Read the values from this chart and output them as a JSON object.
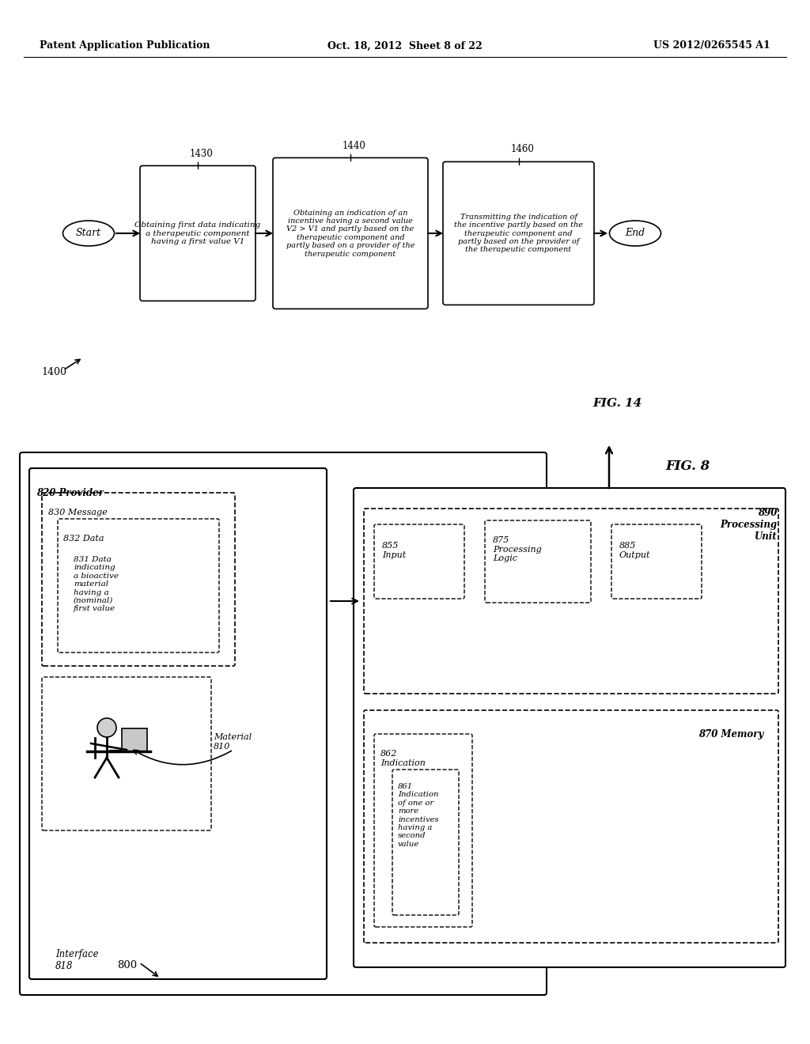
{
  "background_color": "#ffffff",
  "header_left": "Patent Application Publication",
  "header_center": "Oct. 18, 2012  Sheet 8 of 22",
  "header_right": "US 2012/0265545 A1",
  "fig14_label": "FIG. 14",
  "fig14_ref": "1400",
  "fig8_label": "FIG. 8",
  "fig8_ref": "800",
  "fig14": {
    "start_label": "Start",
    "end_label": "End",
    "box1_ref": "1430",
    "box1_text": "Obtaining first data indicating\na therapeutic component\nhaving a first value V1",
    "box2_ref": "1440",
    "box2_text": "Obtaining an indication of an\nincentive having a second value\nV2 > V1 and partly based on the\ntherapeutic component and\npartly based on a provider of the\ntherapeutic component",
    "box3_ref": "1460",
    "box3_text": "Transmitting the indication of\nthe incentive partly based on the\ntherapeutic component and\npartly based on the provider of\nthe therapeutic component"
  },
  "fig8": {
    "outer_ref": "800",
    "provider_label": "820 Provider",
    "interface_label": "Interface\n818",
    "message_label": "830 Message",
    "data_label": "832 Data",
    "data831_text": "831 Data\nindicating\na bioactive\nmaterial\nhaving a\n(nominal)\nfirst value",
    "material_label": "Material\n810",
    "pu_label": "890\nProcessing\nUnit",
    "input_label": "855\nInput",
    "proc_label": "875\nProcessing\nLogic",
    "output_label": "885\nOutput",
    "memory_label": "870 Memory",
    "ind_label": "862\nIndication",
    "ind861_text": "861\nIndication\nof one or\nmore\nincentives\nhaving a\nsecond\nvalue"
  }
}
